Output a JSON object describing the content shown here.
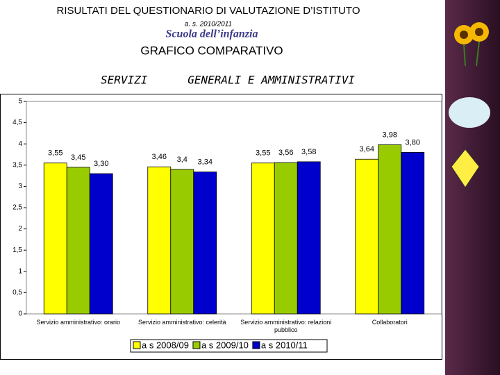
{
  "header": {
    "title": "RISULTATI  DEL   QUESTIONARIO DI VALUTAZIONE D’ISTITUTO",
    "year": "a. s. 2010/2011",
    "school": "Scuola  dell’infanzia",
    "subtitle": "GRAFICO COMPARATIVO",
    "section": "SERVIZI      GENERALI E AMMINISTRATIVI"
  },
  "chart_data": {
    "type": "bar",
    "categories": [
      "Servizio amministrativo: orario",
      "Servizio amministrativo: celerità",
      "Servizio amministrativo: relazioni pubblico",
      "Collaboratori"
    ],
    "series": [
      {
        "name": "a s 2008/09",
        "color": "#ffff00",
        "values": [
          3.55,
          3.46,
          3.55,
          3.64
        ],
        "value_labels": [
          "3,55",
          "3,46",
          "3,55",
          "3,64"
        ]
      },
      {
        "name": "a s 2009/10",
        "color": "#99cc00",
        "values": [
          3.45,
          3.4,
          3.56,
          3.98
        ],
        "value_labels": [
          "3,45",
          "3,4",
          "3,56",
          "3,98"
        ]
      },
      {
        "name": "a s 2010/11",
        "color": "#0000cc",
        "values": [
          3.3,
          3.34,
          3.58,
          3.8
        ],
        "value_labels": [
          "3,30",
          "3,34",
          "3,58",
          "3,80"
        ]
      }
    ],
    "ylim": [
      0,
      5
    ],
    "yticks": [
      0,
      {
        "value": 0.5,
        "label": "0,5"
      },
      1,
      {
        "value": 1.5,
        "label": "1,5"
      },
      2,
      {
        "value": 2.5,
        "label": "2,5"
      },
      3,
      {
        "value": 3.5,
        "label": "3,5"
      },
      4,
      {
        "value": 4.5,
        "label": "4,5"
      },
      5
    ],
    "legend": "bottom"
  }
}
